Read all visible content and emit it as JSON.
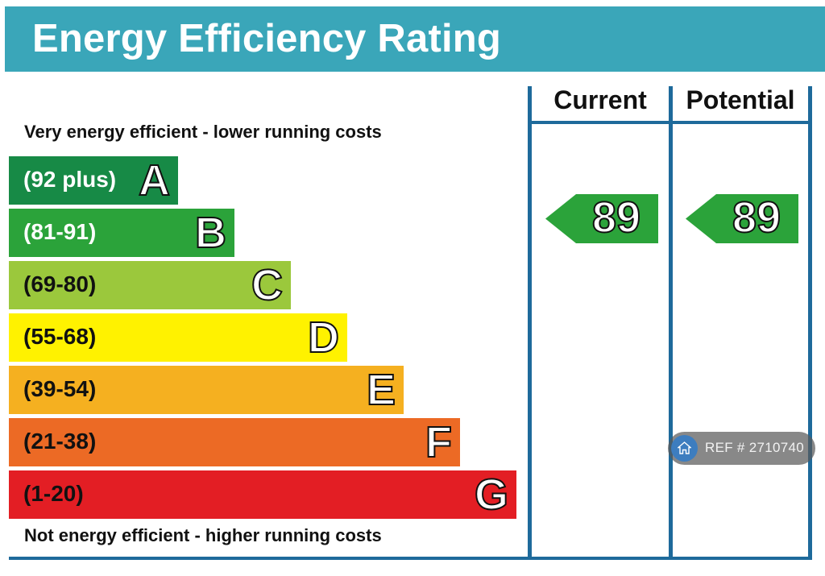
{
  "header": {
    "title": "Energy Efficiency Rating"
  },
  "captions": {
    "top": "Very energy efficient - lower running costs",
    "bottom": "Not energy efficient - higher running costs"
  },
  "columns": {
    "current": "Current",
    "potential": "Potential"
  },
  "chart_data": {
    "type": "bar",
    "title": "Energy Efficiency Rating",
    "bands": [
      {
        "letter": "A",
        "range": "(92 plus)",
        "color": "#178a46"
      },
      {
        "letter": "B",
        "range": "(81-91)",
        "color": "#2ba33a"
      },
      {
        "letter": "C",
        "range": "(69-80)",
        "color": "#9bc83c"
      },
      {
        "letter": "D",
        "range": "(55-68)",
        "color": "#fff200"
      },
      {
        "letter": "E",
        "range": "(39-54)",
        "color": "#f5b020"
      },
      {
        "letter": "F",
        "range": "(21-38)",
        "color": "#ec6a25"
      },
      {
        "letter": "G",
        "range": "(1-20)",
        "color": "#e31e24"
      }
    ],
    "current": {
      "value": "89",
      "band": "B",
      "color": "#2ba33a"
    },
    "potential": {
      "value": "89",
      "band": "B",
      "color": "#2ba33a"
    }
  },
  "watermark": {
    "icon": "home-icon",
    "text": "REF # 2710740"
  }
}
